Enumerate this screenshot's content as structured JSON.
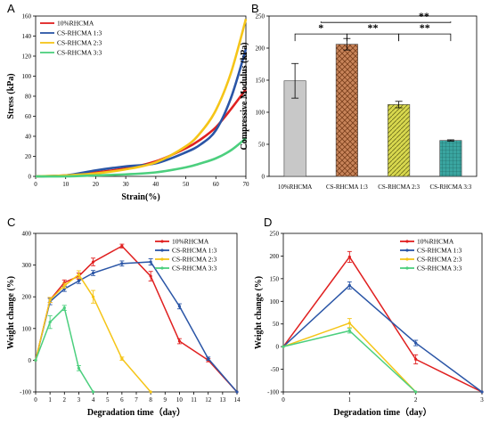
{
  "colors": {
    "red": "#e02020",
    "blue": "#2a55a6",
    "yellow": "#f5c518",
    "green": "#4ccf7e"
  },
  "chart_data": [
    {
      "panel": "A",
      "type": "line",
      "xlabel": "Strain(%)",
      "ylabel": "Stress (kPa)",
      "xlim": [
        0,
        70
      ],
      "ylim": [
        0,
        160
      ],
      "xticks": [
        "0",
        "10",
        "20",
        "30",
        "40",
        "50",
        "60",
        "70"
      ],
      "yticks": [
        "0",
        "20",
        "40",
        "60",
        "80",
        "100",
        "120",
        "140",
        "160"
      ],
      "legend": "top-left",
      "series": [
        {
          "name": "10%RHCMA",
          "color": "#e02020",
          "x": [
            0,
            10,
            20,
            30,
            40,
            50,
            55,
            60,
            65,
            70
          ],
          "y": [
            0,
            1,
            4,
            8,
            15,
            28,
            37,
            49,
            67,
            87
          ]
        },
        {
          "name": "CS-RHCMA 1:3",
          "color": "#2a55a6",
          "x": [
            0,
            10,
            20,
            30,
            40,
            50,
            55,
            60,
            65,
            70
          ],
          "y": [
            0,
            1,
            6,
            10,
            13,
            24,
            32,
            46,
            78,
            127
          ]
        },
        {
          "name": "CS-RHCMA 2:3",
          "color": "#f5c518",
          "x": [
            0,
            10,
            20,
            30,
            40,
            50,
            55,
            60,
            65,
            70
          ],
          "y": [
            0,
            1,
            3,
            7,
            14,
            30,
            44,
            66,
            103,
            157
          ]
        },
        {
          "name": "CS-RHCMA 3:3",
          "color": "#4ccf7e",
          "x": [
            0,
            10,
            20,
            30,
            40,
            50,
            55,
            60,
            65,
            70
          ],
          "y": [
            0,
            0,
            1,
            2,
            4,
            9,
            13,
            18,
            26,
            38
          ]
        }
      ]
    },
    {
      "panel": "B",
      "type": "bar",
      "ylabel": "Compressive Modulus (kPa)",
      "ylim": [
        0,
        250
      ],
      "yticks": [
        "0",
        "50",
        "100",
        "150",
        "200",
        "250"
      ],
      "categories": [
        "10%RHCMA",
        "CS-RHCMA 1:3",
        "CS-RHCMA 2:3",
        "CS-RHCMA 3:3"
      ],
      "values": [
        149,
        206,
        112,
        56
      ],
      "errors": [
        27,
        9,
        5,
        1
      ],
      "colors": [
        "#c8c8c8",
        "#c8845a",
        "#d8d84e",
        "#3aa5a0"
      ],
      "significance": [
        "*",
        "**",
        "**",
        "**"
      ]
    },
    {
      "panel": "C",
      "type": "line",
      "xlabel": "Degradation time（day）",
      "ylabel": "Weight change (%)",
      "xlim": [
        0,
        14
      ],
      "ylim": [
        -100,
        400
      ],
      "xticks": [
        "0",
        "1",
        "2",
        "3",
        "4",
        "5",
        "6",
        "7",
        "8",
        "9",
        "10",
        "11",
        "12",
        "13",
        "14"
      ],
      "yticks": [
        "-100",
        "0",
        "100",
        "200",
        "300",
        "400"
      ],
      "legend": "top-right",
      "series": [
        {
          "name": "10%RHCMA",
          "color": "#e02020",
          "x": [
            0,
            1,
            2,
            3,
            4,
            6,
            8,
            10,
            12,
            14
          ],
          "y": [
            0,
            190,
            245,
            265,
            310,
            360,
            265,
            60,
            0,
            -100
          ],
          "err": [
            0,
            8,
            8,
            10,
            12,
            6,
            15,
            8,
            5,
            0
          ]
        },
        {
          "name": "CS-RHCMA 1:3",
          "color": "#2a55a6",
          "x": [
            0,
            1,
            2,
            3,
            4,
            6,
            8,
            10,
            12,
            14
          ],
          "y": [
            0,
            185,
            225,
            250,
            275,
            305,
            310,
            170,
            5,
            -100
          ],
          "err": [
            0,
            10,
            8,
            8,
            8,
            8,
            10,
            8,
            5,
            0
          ]
        },
        {
          "name": "CS-RHCMA 2:3",
          "color": "#f5c518",
          "x": [
            0,
            1,
            2,
            3,
            4,
            6,
            8
          ],
          "y": [
            0,
            190,
            235,
            270,
            200,
            5,
            -100
          ],
          "err": [
            0,
            8,
            8,
            12,
            20,
            5,
            0
          ]
        },
        {
          "name": "CS-RHCMA 3:3",
          "color": "#4ccf7e",
          "x": [
            0,
            1,
            2,
            3,
            4
          ],
          "y": [
            0,
            120,
            165,
            -25,
            -100
          ],
          "err": [
            0,
            20,
            8,
            8,
            0
          ]
        }
      ]
    },
    {
      "panel": "D",
      "type": "line",
      "xlabel": "Degradation time（day）",
      "ylabel": "Weight change (%)",
      "xlim": [
        0,
        3
      ],
      "ylim": [
        -100,
        250
      ],
      "xticks": [
        "0",
        "1",
        "2",
        "3"
      ],
      "yticks": [
        "-100",
        "-50",
        "0",
        "50",
        "100",
        "150",
        "200",
        "250"
      ],
      "legend": "top-right",
      "series": [
        {
          "name": "10%RHCMA",
          "color": "#e02020",
          "x": [
            0,
            1,
            2,
            3
          ],
          "y": [
            0,
            198,
            -28,
            -100
          ],
          "err": [
            0,
            12,
            10,
            0
          ]
        },
        {
          "name": "CS-RHCMA 1:3",
          "color": "#2a55a6",
          "x": [
            0,
            1,
            2,
            3
          ],
          "y": [
            0,
            135,
            8,
            -100
          ],
          "err": [
            0,
            8,
            6,
            0
          ]
        },
        {
          "name": "CS-RHCMA 2:3",
          "color": "#f5c518",
          "x": [
            0,
            1,
            2
          ],
          "y": [
            0,
            52,
            -100
          ],
          "err": [
            0,
            10,
            0
          ]
        },
        {
          "name": "CS-RHCMA 3:3",
          "color": "#4ccf7e",
          "x": [
            0,
            1,
            2
          ],
          "y": [
            0,
            35,
            -100
          ],
          "err": [
            0,
            5,
            0
          ]
        }
      ]
    }
  ]
}
